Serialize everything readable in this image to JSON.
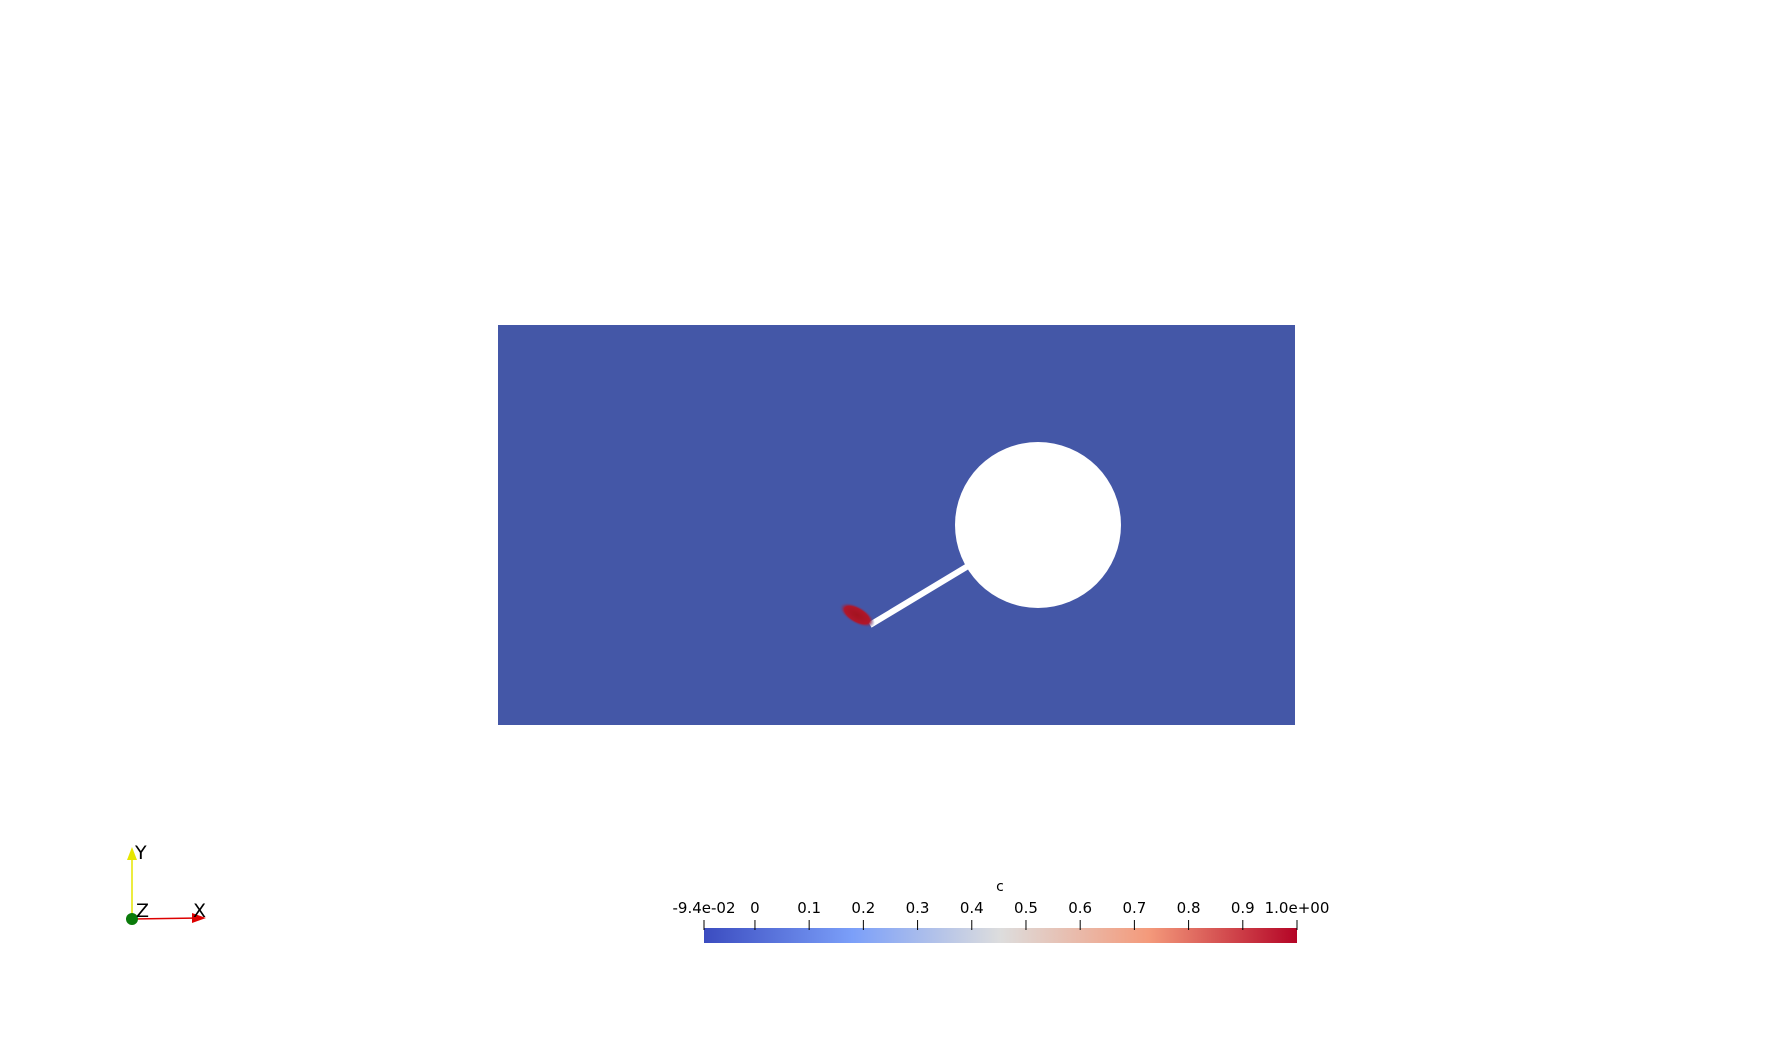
{
  "colorbar": {
    "title": "c",
    "range": [
      -0.094,
      1
    ],
    "ticks": [
      {
        "value": -0.094,
        "label": "-9.4e-02"
      },
      0,
      0.1,
      0.2,
      0.3,
      0.4,
      0.5,
      0.6,
      0.7,
      0.8,
      0.9,
      {
        "value": 1,
        "label": "1.0e+00"
      }
    ]
  },
  "axes": {
    "x": "X",
    "y": "Y",
    "z": "Z"
  }
}
